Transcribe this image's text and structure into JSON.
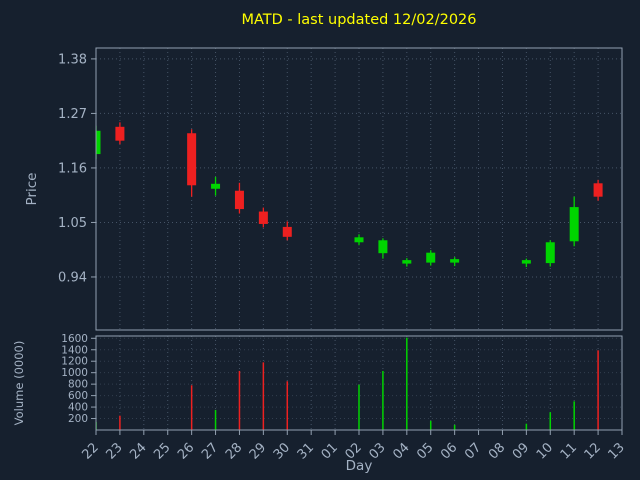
{
  "title": "MATD - last updated 12/02/2026",
  "axes": {
    "y1_label": "Price",
    "y2_label": "Volume (0000)",
    "x_label": "Day"
  },
  "colors": {
    "background": "#16202e",
    "up": "#00d400",
    "down": "#ee2020",
    "title": "#ffff00",
    "tick_text": "#a4b2c4",
    "axis_label": "#a4b2c4",
    "grid": "#4e5d70",
    "border": "#93a1b1"
  },
  "chart_data": [
    {
      "type": "candlestick",
      "title": "MATD - last updated 12/02/2026",
      "xlabel": "Day",
      "ylabel": "Price",
      "yticks": [
        0.94,
        1.05,
        1.16,
        1.27,
        1.38
      ],
      "ylim": [
        0.833,
        1.402
      ],
      "grid": true,
      "categories": [
        "22",
        "23",
        "24",
        "25",
        "26",
        "27",
        "28",
        "29",
        "30",
        "31",
        "01",
        "02",
        "03",
        "04",
        "05",
        "06",
        "07",
        "08",
        "09",
        "10",
        "11",
        "12",
        "13"
      ],
      "candles": [
        {
          "day": "22",
          "open": 1.188,
          "high": 1.245,
          "low": 1.178,
          "close": 1.235
        },
        {
          "day": "23",
          "open": 1.243,
          "high": 1.252,
          "low": 1.208,
          "close": 1.215
        },
        {
          "day": "24",
          "open": null,
          "high": null,
          "low": null,
          "close": null
        },
        {
          "day": "25",
          "open": null,
          "high": null,
          "low": null,
          "close": null
        },
        {
          "day": "26",
          "open": 1.23,
          "high": 1.238,
          "low": 1.102,
          "close": 1.125
        },
        {
          "day": "27",
          "open": 1.118,
          "high": 1.142,
          "low": 1.104,
          "close": 1.128
        },
        {
          "day": "28",
          "open": 1.114,
          "high": 1.13,
          "low": 1.068,
          "close": 1.077
        },
        {
          "day": "29",
          "open": 1.072,
          "high": 1.08,
          "low": 1.04,
          "close": 1.047
        },
        {
          "day": "30",
          "open": 1.041,
          "high": 1.052,
          "low": 1.014,
          "close": 1.021
        },
        {
          "day": "31",
          "open": null,
          "high": null,
          "low": null,
          "close": null
        },
        {
          "day": "01",
          "open": null,
          "high": null,
          "low": null,
          "close": null
        },
        {
          "day": "02",
          "open": 1.01,
          "high": 1.026,
          "low": 1.004,
          "close": 1.02
        },
        {
          "day": "03",
          "open": 0.988,
          "high": 1.018,
          "low": 0.977,
          "close": 1.014
        },
        {
          "day": "04",
          "open": 0.967,
          "high": 0.978,
          "low": 0.961,
          "close": 0.974
        },
        {
          "day": "05",
          "open": 0.969,
          "high": 0.994,
          "low": 0.963,
          "close": 0.989
        },
        {
          "day": "06",
          "open": 0.969,
          "high": 0.98,
          "low": 0.962,
          "close": 0.976
        },
        {
          "day": "07",
          "open": null,
          "high": null,
          "low": null,
          "close": null
        },
        {
          "day": "08",
          "open": null,
          "high": null,
          "low": null,
          "close": null
        },
        {
          "day": "09",
          "open": 0.967,
          "high": 0.977,
          "low": 0.96,
          "close": 0.974
        },
        {
          "day": "10",
          "open": 0.968,
          "high": 1.014,
          "low": 0.961,
          "close": 1.01
        },
        {
          "day": "11",
          "open": 1.012,
          "high": 1.102,
          "low": 1.002,
          "close": 1.081
        },
        {
          "day": "12",
          "open": 1.129,
          "high": 1.136,
          "low": 1.094,
          "close": 1.102
        },
        {
          "day": "13",
          "open": null,
          "high": null,
          "low": null,
          "close": null
        }
      ]
    },
    {
      "type": "bar",
      "ylabel": "Volume (0000)",
      "yticks": [
        200,
        400,
        600,
        800,
        1000,
        1200,
        1400,
        1600
      ],
      "ylim": [
        0,
        1640
      ],
      "grid": true,
      "categories": [
        "22",
        "23",
        "24",
        "25",
        "26",
        "27",
        "28",
        "29",
        "30",
        "31",
        "01",
        "02",
        "03",
        "04",
        "05",
        "06",
        "07",
        "08",
        "09",
        "10",
        "11",
        "12",
        "13"
      ],
      "values": [
        140,
        250,
        null,
        null,
        780,
        350,
        1030,
        1180,
        850,
        null,
        null,
        790,
        1030,
        1610,
        160,
        90,
        null,
        null,
        110,
        310,
        500,
        1390,
        null
      ]
    }
  ]
}
